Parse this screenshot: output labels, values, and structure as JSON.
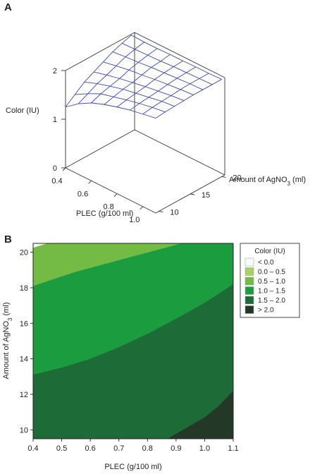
{
  "panels": {
    "a_label": "A",
    "b_label": "B"
  },
  "chart_data": [
    {
      "type": "surface",
      "panel": "A",
      "zlabel": "Color (IU)",
      "xlabel": "PLEC (g/100 ml)",
      "ylabel_prefix": "Amount of AgNO",
      "ylabel_sub": "3",
      "ylabel_suffix": " (ml)",
      "x_ticks": [
        "0.4",
        "0.6",
        "0.8",
        "1.0"
      ],
      "y_ticks": [
        "10",
        "15",
        "20"
      ],
      "z_ticks": [
        "0",
        "1",
        "2"
      ],
      "x_range": [
        0.4,
        1.1
      ],
      "y_range": [
        9.5,
        20.5
      ],
      "z_range": [
        0,
        2
      ],
      "x": [
        0.4,
        0.5,
        0.6,
        0.7,
        0.8,
        0.9,
        1.0,
        1.1
      ],
      "y": [
        9.5,
        11,
        12.5,
        14,
        15.5,
        17,
        18.5,
        20
      ],
      "z": [
        [
          1.25,
          1.45,
          1.6,
          1.7,
          1.78,
          1.85,
          1.9,
          1.95
        ],
        [
          1.4,
          1.55,
          1.68,
          1.75,
          1.82,
          1.88,
          1.93,
          1.97
        ],
        [
          1.55,
          1.65,
          1.73,
          1.8,
          1.85,
          1.9,
          1.95,
          1.98
        ],
        [
          1.65,
          1.72,
          1.78,
          1.83,
          1.88,
          1.92,
          1.96,
          1.99
        ],
        [
          1.75,
          1.8,
          1.85,
          1.88,
          1.92,
          1.95,
          1.98,
          2.0
        ],
        [
          1.85,
          1.88,
          1.9,
          1.93,
          1.95,
          1.97,
          1.99,
          2.0
        ],
        [
          1.92,
          1.93,
          1.94,
          1.95,
          1.97,
          1.98,
          1.99,
          2.0
        ],
        [
          1.98,
          1.97,
          1.97,
          1.98,
          1.98,
          1.99,
          1.99,
          2.0
        ]
      ],
      "mesh_color": "#3b4aa8"
    },
    {
      "type": "contour",
      "panel": "B",
      "xlabel": "PLEC (g/100 ml)",
      "ylabel_prefix": "Amount of AgNO",
      "ylabel_sub": "3",
      "ylabel_suffix": " (ml)",
      "xlim": [
        0.4,
        1.1
      ],
      "ylim": [
        9.5,
        20.5
      ],
      "x_ticks": [
        "0.4",
        "0.5",
        "0.6",
        "0.7",
        "0.8",
        "0.9",
        "1.0",
        "1.1"
      ],
      "y_ticks": [
        "10",
        "12",
        "14",
        "16",
        "18",
        "20"
      ],
      "levels": [
        0.0,
        0.5,
        1.0,
        1.5,
        2.0
      ],
      "contours": [
        {
          "level": 0.5,
          "points": [
            [
              0.4,
              20.25
            ],
            [
              0.45,
              20.5
            ]
          ]
        },
        {
          "level": 1.0,
          "points": [
            [
              0.4,
              18.1
            ],
            [
              0.55,
              18.9
            ],
            [
              0.7,
              19.55
            ],
            [
              0.85,
              20.2
            ],
            [
              0.92,
              20.5
            ]
          ]
        },
        {
          "level": 1.5,
          "points": [
            [
              0.4,
              13.1
            ],
            [
              0.5,
              13.5
            ],
            [
              0.6,
              14.0
            ],
            [
              0.7,
              14.65
            ],
            [
              0.8,
              15.4
            ],
            [
              0.9,
              16.25
            ],
            [
              1.0,
              17.15
            ],
            [
              1.1,
              18.2
            ]
          ]
        },
        {
          "level": 2.0,
          "points": [
            [
              0.87,
              9.5
            ],
            [
              0.93,
              10.05
            ],
            [
              1.0,
              10.7
            ],
            [
              1.05,
              11.35
            ],
            [
              1.1,
              12.2
            ]
          ]
        }
      ],
      "legend": {
        "title": "Color (IU)",
        "position": "right",
        "entries": [
          {
            "label": "< 0.0",
            "color": "#f7fbf5"
          },
          {
            "label": "0.0 – 0.5",
            "color": "#a7d262"
          },
          {
            "label": "0.5 – 1.0",
            "color": "#74bb46"
          },
          {
            "label": "1.0 – 1.5",
            "color": "#1a9c3f"
          },
          {
            "label": "1.5 – 2.0",
            "color": "#1d6b36"
          },
          {
            "label": "> 2.0",
            "color": "#233827"
          }
        ]
      }
    }
  ]
}
